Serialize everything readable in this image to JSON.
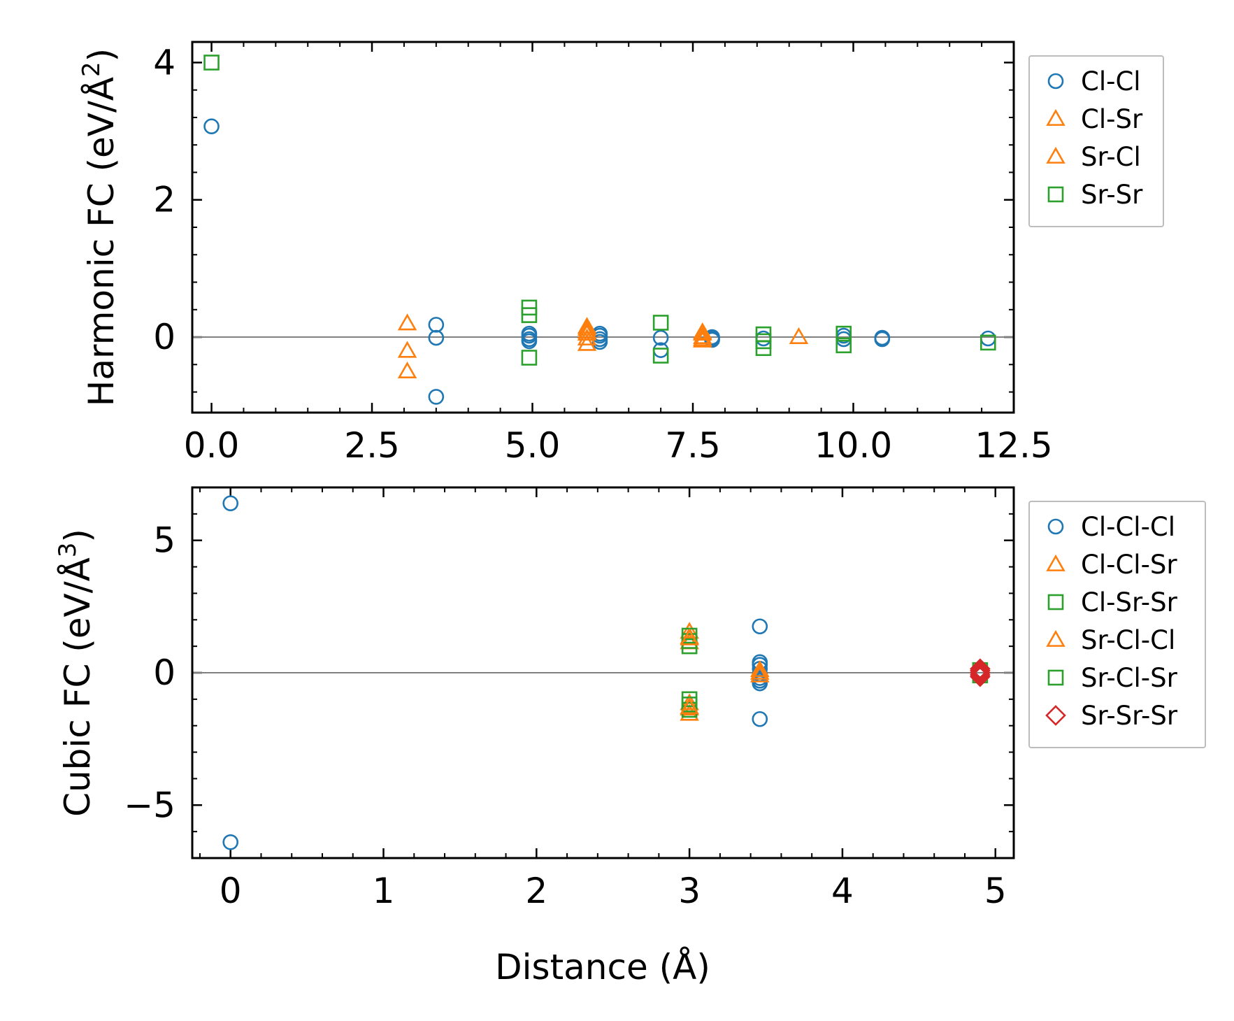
{
  "colors": {
    "blue": "#1f77b4",
    "orange": "#ff7f0e",
    "green": "#2ca02c",
    "red": "#d62728",
    "zero_line": "#808080"
  },
  "shared": {
    "xlabel": "Distance (Å)"
  },
  "chart_data": [
    {
      "type": "scatter",
      "ylabel": "Harmonic FC (eV/Å²)",
      "ylabel_main": "Harmonic FC (eV/Å",
      "ylabel_sup": "2",
      "ylabel_close": ")",
      "xlim": [
        -0.3,
        12.5
      ],
      "ylim": [
        -1.1,
        4.3
      ],
      "xticks": [
        0.0,
        2.5,
        5.0,
        7.5,
        10.0,
        12.5
      ],
      "xtick_labels": [
        "0.0",
        "2.5",
        "5.0",
        "7.5",
        "10.0",
        "12.5"
      ],
      "yticks": [
        0,
        2,
        4
      ],
      "ytick_labels": [
        "0",
        "2",
        "4"
      ],
      "legend_position": "outside-right-top",
      "series": [
        {
          "name": "Cl-Cl",
          "marker": "circle",
          "color": "#1f77b4",
          "x": [
            0,
            3.5,
            3.5,
            3.5,
            4.95,
            4.95,
            4.95,
            4.95,
            6.05,
            6.05,
            6.05,
            6.05,
            7.0,
            7.0,
            7.8,
            7.8,
            7.8,
            8.6,
            9.85,
            9.85,
            10.45,
            10.45,
            12.1
          ],
          "y": [
            3.07,
            0.18,
            -0.01,
            -0.87,
            0.05,
            0.02,
            -0.03,
            -0.06,
            0.05,
            0.02,
            -0.03,
            -0.07,
            -0.01,
            -0.19,
            0.0,
            -0.02,
            -0.04,
            -0.02,
            0.02,
            -0.03,
            -0.01,
            -0.03,
            -0.02
          ]
        },
        {
          "name": "Cl-Sr",
          "marker": "triangle",
          "color": "#ff7f0e",
          "x": [
            3.05,
            3.05,
            3.05,
            5.85,
            5.85,
            5.85,
            5.85,
            7.65,
            7.65,
            7.65,
            9.15
          ],
          "y": [
            0.2,
            -0.2,
            -0.5,
            0.12,
            0.05,
            -0.02,
            -0.1,
            0.05,
            0.0,
            -0.03,
            0.0
          ]
        },
        {
          "name": "Sr-Cl",
          "marker": "triangle",
          "color": "#ff7f0e",
          "x": [
            5.85,
            5.85,
            7.65,
            7.65
          ],
          "y": [
            0.15,
            0.08,
            0.07,
            -0.05
          ]
        },
        {
          "name": "Sr-Sr",
          "marker": "square",
          "color": "#2ca02c",
          "x": [
            0,
            4.95,
            4.95,
            4.95,
            7.0,
            7.0,
            8.6,
            8.6,
            8.6,
            9.85,
            9.85,
            12.1
          ],
          "y": [
            4.0,
            0.43,
            0.32,
            -0.3,
            0.21,
            -0.27,
            0.04,
            -0.06,
            -0.16,
            0.05,
            -0.12,
            -0.08
          ]
        }
      ]
    },
    {
      "type": "scatter",
      "ylabel": "Cubic FC (eV/Å³)",
      "ylabel_main": "Cubic FC (eV/Å",
      "ylabel_sup": "3",
      "ylabel_close": ")",
      "xlim": [
        -0.25,
        5.12
      ],
      "ylim": [
        -7.0,
        7.0
      ],
      "xticks": [
        0,
        1,
        2,
        3,
        4,
        5
      ],
      "xtick_labels": [
        "0",
        "1",
        "2",
        "3",
        "4",
        "5"
      ],
      "yticks": [
        -5,
        0,
        5
      ],
      "ytick_labels": [
        "−5",
        "0",
        "5"
      ],
      "legend_position": "outside-right-top",
      "series": [
        {
          "name": "Cl-Cl-Cl",
          "marker": "circle",
          "color": "#1f77b4",
          "x": [
            0,
            0,
            3.46,
            3.46,
            3.46,
            3.46,
            3.46,
            3.46,
            3.46,
            3.46,
            3.46
          ],
          "y": [
            6.4,
            -6.4,
            1.75,
            0.4,
            0.3,
            0.15,
            -0.05,
            -0.2,
            -0.3,
            -0.4,
            -1.75
          ]
        },
        {
          "name": "Cl-Cl-Sr",
          "marker": "triangle",
          "color": "#ff7f0e",
          "x": [
            3.0,
            3.0,
            3.0,
            3.0,
            3.0,
            3.0,
            3.46,
            3.46
          ],
          "y": [
            1.55,
            1.35,
            1.15,
            -1.15,
            -1.35,
            -1.55,
            0.1,
            -0.1
          ]
        },
        {
          "name": "Cl-Sr-Sr",
          "marker": "square",
          "color": "#2ca02c",
          "x": [
            3.0,
            3.0,
            3.0,
            3.0,
            3.0,
            3.0
          ],
          "y": [
            1.4,
            1.2,
            1.0,
            -1.0,
            -1.2,
            -1.4
          ]
        },
        {
          "name": "Sr-Cl-Cl",
          "marker": "triangle",
          "color": "#ff7f0e",
          "x": [
            3.0,
            3.0,
            3.46
          ],
          "y": [
            1.3,
            -1.3,
            0.0
          ]
        },
        {
          "name": "Sr-Cl-Sr",
          "marker": "square",
          "color": "#2ca02c",
          "x": [
            4.9,
            4.9
          ],
          "y": [
            0.1,
            -0.1
          ]
        },
        {
          "name": "Sr-Sr-Sr",
          "marker": "diamond",
          "color": "#d62728",
          "x": [
            4.9,
            4.9,
            4.9,
            4.9,
            4.9
          ],
          "y": [
            0.15,
            0.08,
            0.0,
            -0.08,
            -0.15
          ]
        }
      ]
    }
  ]
}
